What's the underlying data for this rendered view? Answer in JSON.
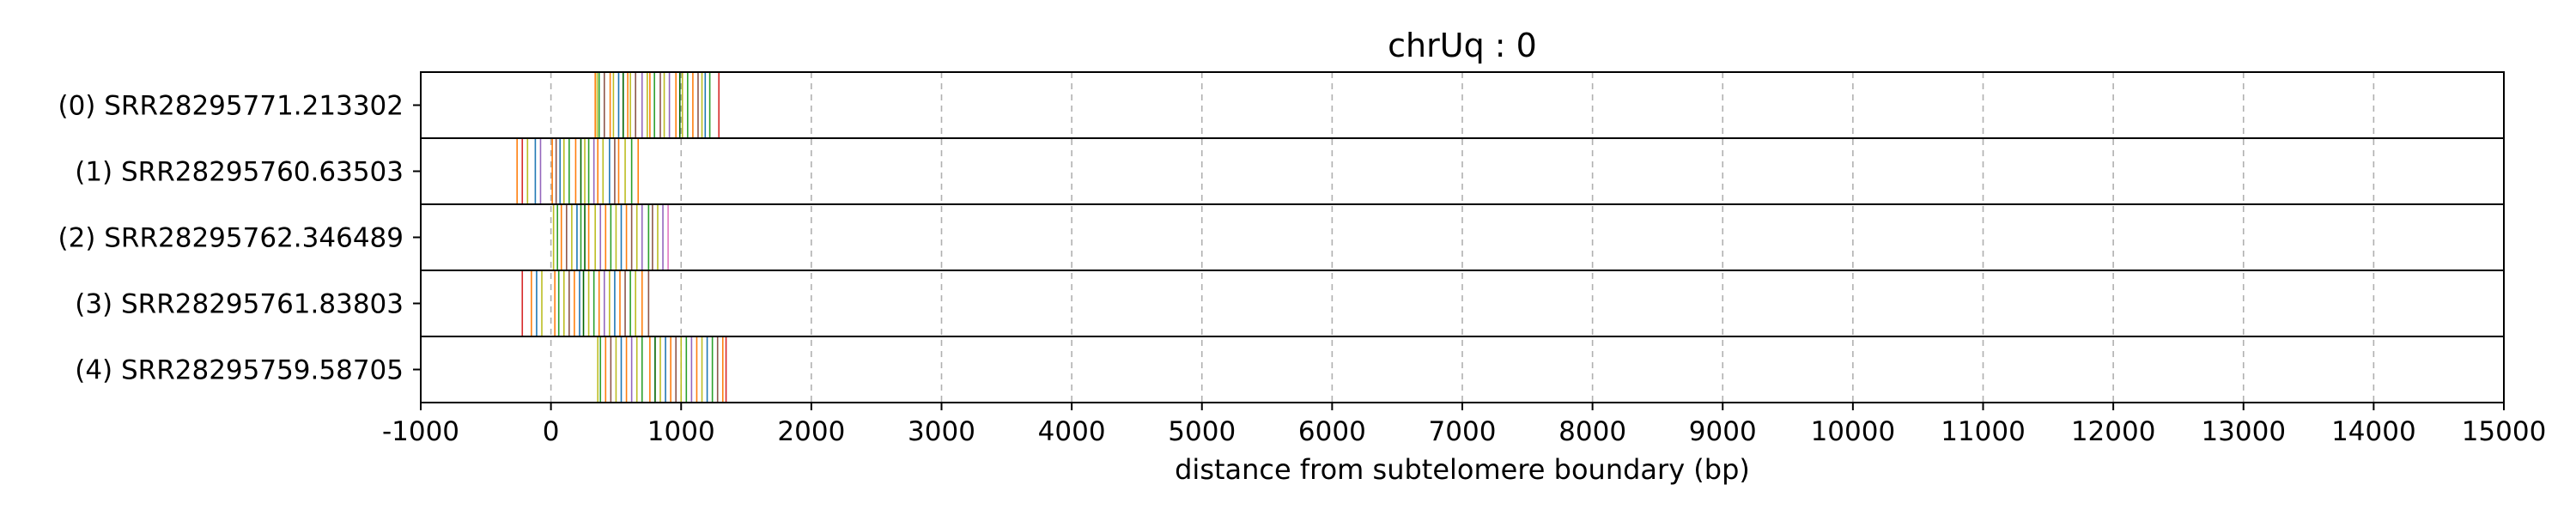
{
  "chart_data": {
    "type": "strip",
    "title": "chrUq : 0",
    "xlabel": "distance from subtelomere boundary (bp)",
    "ylabel": "",
    "xlim": [
      -1000,
      15000
    ],
    "xticks": [
      -1000,
      0,
      1000,
      2000,
      3000,
      4000,
      5000,
      6000,
      7000,
      8000,
      9000,
      10000,
      11000,
      12000,
      13000,
      14000,
      15000
    ],
    "xtick_labels": [
      "-1000",
      "0",
      "1000",
      "2000",
      "3000",
      "4000",
      "5000",
      "6000",
      "7000",
      "8000",
      "9000",
      "10000",
      "11000",
      "12000",
      "13000",
      "14000",
      "15000"
    ],
    "grid": "vertical dashed",
    "palette": [
      "#d62728",
      "#2ca02c",
      "#1f77b4",
      "#ff7f0e",
      "#9467bd",
      "#bcbd22",
      "#8c564b",
      "#17becf",
      "#006400",
      "#e377c2"
    ],
    "reads": [
      {
        "label": "(0) SRR28295771.213302",
        "marks": [
          {
            "x": 340,
            "c": 3
          },
          {
            "x": 355,
            "c": 5
          },
          {
            "x": 370,
            "c": 1
          },
          {
            "x": 410,
            "c": 6
          },
          {
            "x": 455,
            "c": 3
          },
          {
            "x": 480,
            "c": 5
          },
          {
            "x": 520,
            "c": 2
          },
          {
            "x": 555,
            "c": 8
          },
          {
            "x": 590,
            "c": 3
          },
          {
            "x": 610,
            "c": 5
          },
          {
            "x": 650,
            "c": 6
          },
          {
            "x": 700,
            "c": 4
          },
          {
            "x": 740,
            "c": 5
          },
          {
            "x": 760,
            "c": 3
          },
          {
            "x": 795,
            "c": 1
          },
          {
            "x": 840,
            "c": 6
          },
          {
            "x": 870,
            "c": 5
          },
          {
            "x": 910,
            "c": 4
          },
          {
            "x": 960,
            "c": 3
          },
          {
            "x": 990,
            "c": 8
          },
          {
            "x": 1010,
            "c": 5
          },
          {
            "x": 1050,
            "c": 1
          },
          {
            "x": 1090,
            "c": 3
          },
          {
            "x": 1130,
            "c": 6
          },
          {
            "x": 1160,
            "c": 5
          },
          {
            "x": 1185,
            "c": 2
          },
          {
            "x": 1220,
            "c": 1
          },
          {
            "x": 1290,
            "c": 0
          }
        ]
      },
      {
        "label": "(1) SRR28295760.63503",
        "marks": [
          {
            "x": -260,
            "c": 3
          },
          {
            "x": -220,
            "c": 0
          },
          {
            "x": -180,
            "c": 5
          },
          {
            "x": -120,
            "c": 2
          },
          {
            "x": -80,
            "c": 4
          },
          {
            "x": 10,
            "c": 3
          },
          {
            "x": 40,
            "c": 6
          },
          {
            "x": 70,
            "c": 2
          },
          {
            "x": 100,
            "c": 5
          },
          {
            "x": 140,
            "c": 1
          },
          {
            "x": 190,
            "c": 3
          },
          {
            "x": 230,
            "c": 8
          },
          {
            "x": 260,
            "c": 5
          },
          {
            "x": 290,
            "c": 1
          },
          {
            "x": 330,
            "c": 4
          },
          {
            "x": 360,
            "c": 3
          },
          {
            "x": 400,
            "c": 5
          },
          {
            "x": 450,
            "c": 2
          },
          {
            "x": 490,
            "c": 6
          },
          {
            "x": 520,
            "c": 3
          },
          {
            "x": 570,
            "c": 5
          },
          {
            "x": 620,
            "c": 1
          },
          {
            "x": 670,
            "c": 3
          }
        ]
      },
      {
        "label": "(2) SRR28295762.346489",
        "marks": [
          {
            "x": 20,
            "c": 5
          },
          {
            "x": 50,
            "c": 1
          },
          {
            "x": 80,
            "c": 3
          },
          {
            "x": 120,
            "c": 6
          },
          {
            "x": 160,
            "c": 5
          },
          {
            "x": 200,
            "c": 2
          },
          {
            "x": 230,
            "c": 1
          },
          {
            "x": 260,
            "c": 8
          },
          {
            "x": 290,
            "c": 3
          },
          {
            "x": 340,
            "c": 5
          },
          {
            "x": 380,
            "c": 4
          },
          {
            "x": 420,
            "c": 3
          },
          {
            "x": 460,
            "c": 1
          },
          {
            "x": 500,
            "c": 5
          },
          {
            "x": 540,
            "c": 2
          },
          {
            "x": 580,
            "c": 3
          },
          {
            "x": 620,
            "c": 6
          },
          {
            "x": 660,
            "c": 5
          },
          {
            "x": 700,
            "c": 4
          },
          {
            "x": 750,
            "c": 1
          },
          {
            "x": 780,
            "c": 6
          },
          {
            "x": 820,
            "c": 5
          },
          {
            "x": 860,
            "c": 4
          },
          {
            "x": 900,
            "c": 9
          }
        ]
      },
      {
        "label": "(3) SRR28295761.83803",
        "marks": [
          {
            "x": -220,
            "c": 0
          },
          {
            "x": -150,
            "c": 3
          },
          {
            "x": -110,
            "c": 2
          },
          {
            "x": -70,
            "c": 5
          },
          {
            "x": 30,
            "c": 3
          },
          {
            "x": 60,
            "c": 1
          },
          {
            "x": 100,
            "c": 5
          },
          {
            "x": 140,
            "c": 6
          },
          {
            "x": 180,
            "c": 3
          },
          {
            "x": 220,
            "c": 2
          },
          {
            "x": 250,
            "c": 8
          },
          {
            "x": 290,
            "c": 5
          },
          {
            "x": 330,
            "c": 1
          },
          {
            "x": 370,
            "c": 3
          },
          {
            "x": 410,
            "c": 4
          },
          {
            "x": 450,
            "c": 5
          },
          {
            "x": 490,
            "c": 2
          },
          {
            "x": 530,
            "c": 3
          },
          {
            "x": 570,
            "c": 6
          },
          {
            "x": 610,
            "c": 1
          },
          {
            "x": 650,
            "c": 5
          },
          {
            "x": 700,
            "c": 3
          },
          {
            "x": 750,
            "c": 6
          }
        ]
      },
      {
        "label": "(4) SRR28295759.58705",
        "marks": [
          {
            "x": 360,
            "c": 5
          },
          {
            "x": 380,
            "c": 1
          },
          {
            "x": 420,
            "c": 3
          },
          {
            "x": 460,
            "c": 6
          },
          {
            "x": 500,
            "c": 5
          },
          {
            "x": 540,
            "c": 2
          },
          {
            "x": 580,
            "c": 3
          },
          {
            "x": 620,
            "c": 4
          },
          {
            "x": 660,
            "c": 5
          },
          {
            "x": 700,
            "c": 1
          },
          {
            "x": 760,
            "c": 3
          },
          {
            "x": 800,
            "c": 8
          },
          {
            "x": 840,
            "c": 5
          },
          {
            "x": 880,
            "c": 2
          },
          {
            "x": 920,
            "c": 3
          },
          {
            "x": 960,
            "c": 6
          },
          {
            "x": 1000,
            "c": 5
          },
          {
            "x": 1040,
            "c": 1
          },
          {
            "x": 1080,
            "c": 4
          },
          {
            "x": 1120,
            "c": 3
          },
          {
            "x": 1160,
            "c": 5
          },
          {
            "x": 1200,
            "c": 2
          },
          {
            "x": 1240,
            "c": 1
          },
          {
            "x": 1280,
            "c": 6
          },
          {
            "x": 1320,
            "c": 3
          },
          {
            "x": 1345,
            "c": 0
          }
        ]
      }
    ]
  }
}
